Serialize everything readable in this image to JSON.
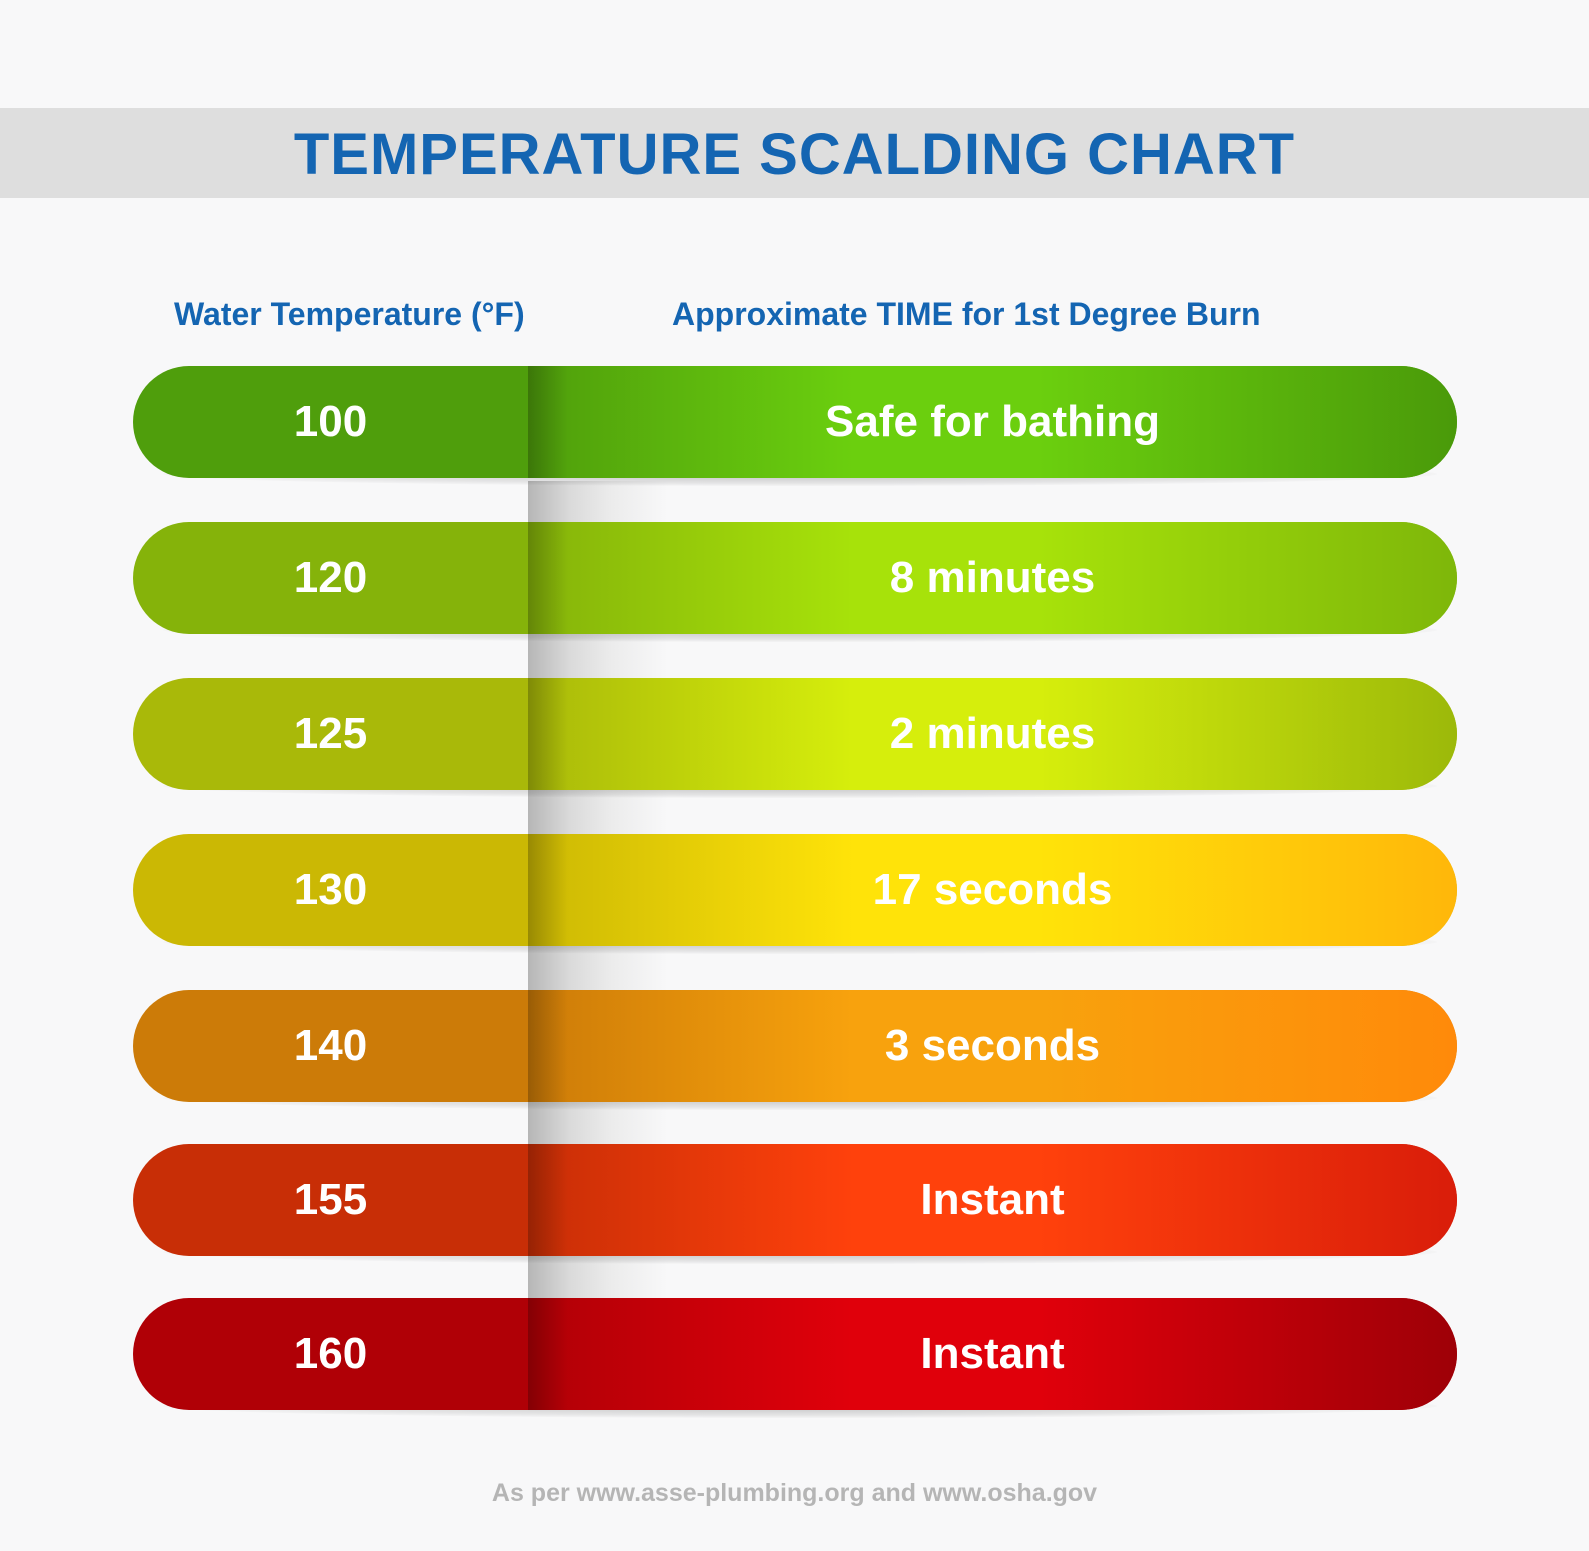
{
  "title": "TEMPERATURE SCALDING CHART",
  "header": {
    "temperature_label": "Water Temperature (°F)",
    "time_label": "Approximate TIME for 1st Degree Burn"
  },
  "rows": [
    {
      "temp": "100",
      "time": "Safe for bathing",
      "color_left": "#4f9e0c",
      "color_mid": "#6bcf0e",
      "color_edge": "#4a9a0a"
    },
    {
      "temp": "120",
      "time": "8 minutes",
      "color_left": "#85b30a",
      "color_mid": "#a7e20a",
      "color_edge": "#7eb70a"
    },
    {
      "temp": "125",
      "time": "2 minutes",
      "color_left": "#a9b909",
      "color_mid": "#d6ee0c",
      "color_edge": "#9cb90a"
    },
    {
      "temp": "130",
      "time": "17 seconds",
      "color_left": "#cbb804",
      "color_mid": "#ffe309",
      "color_edge": "#ffb70a"
    },
    {
      "temp": "140",
      "time": "3 seconds",
      "color_left": "#cc7b08",
      "color_mid": "#f8a20d",
      "color_edge": "#ff8a0a"
    },
    {
      "temp": "155",
      "time": "Instant",
      "color_left": "#c82e06",
      "color_mid": "#ff410c",
      "color_edge": "#d91d0a"
    },
    {
      "temp": "160",
      "time": "Instant",
      "color_left": "#b00006",
      "color_mid": "#e0000b",
      "color_edge": "#9e0007"
    }
  ],
  "footnote": "As per www.asse-plumbing.org and www.osha.gov",
  "chart_data": {
    "type": "table",
    "title": "TEMPERATURE SCALDING CHART",
    "columns": [
      "Water Temperature (°F)",
      "Approximate TIME for 1st Degree Burn"
    ],
    "rows": [
      [
        "100",
        "Safe for bathing"
      ],
      [
        "120",
        "8 minutes"
      ],
      [
        "125",
        "2 minutes"
      ],
      [
        "130",
        "17 seconds"
      ],
      [
        "140",
        "3 seconds"
      ],
      [
        "155",
        "Instant"
      ],
      [
        "160",
        "Instant"
      ]
    ]
  }
}
